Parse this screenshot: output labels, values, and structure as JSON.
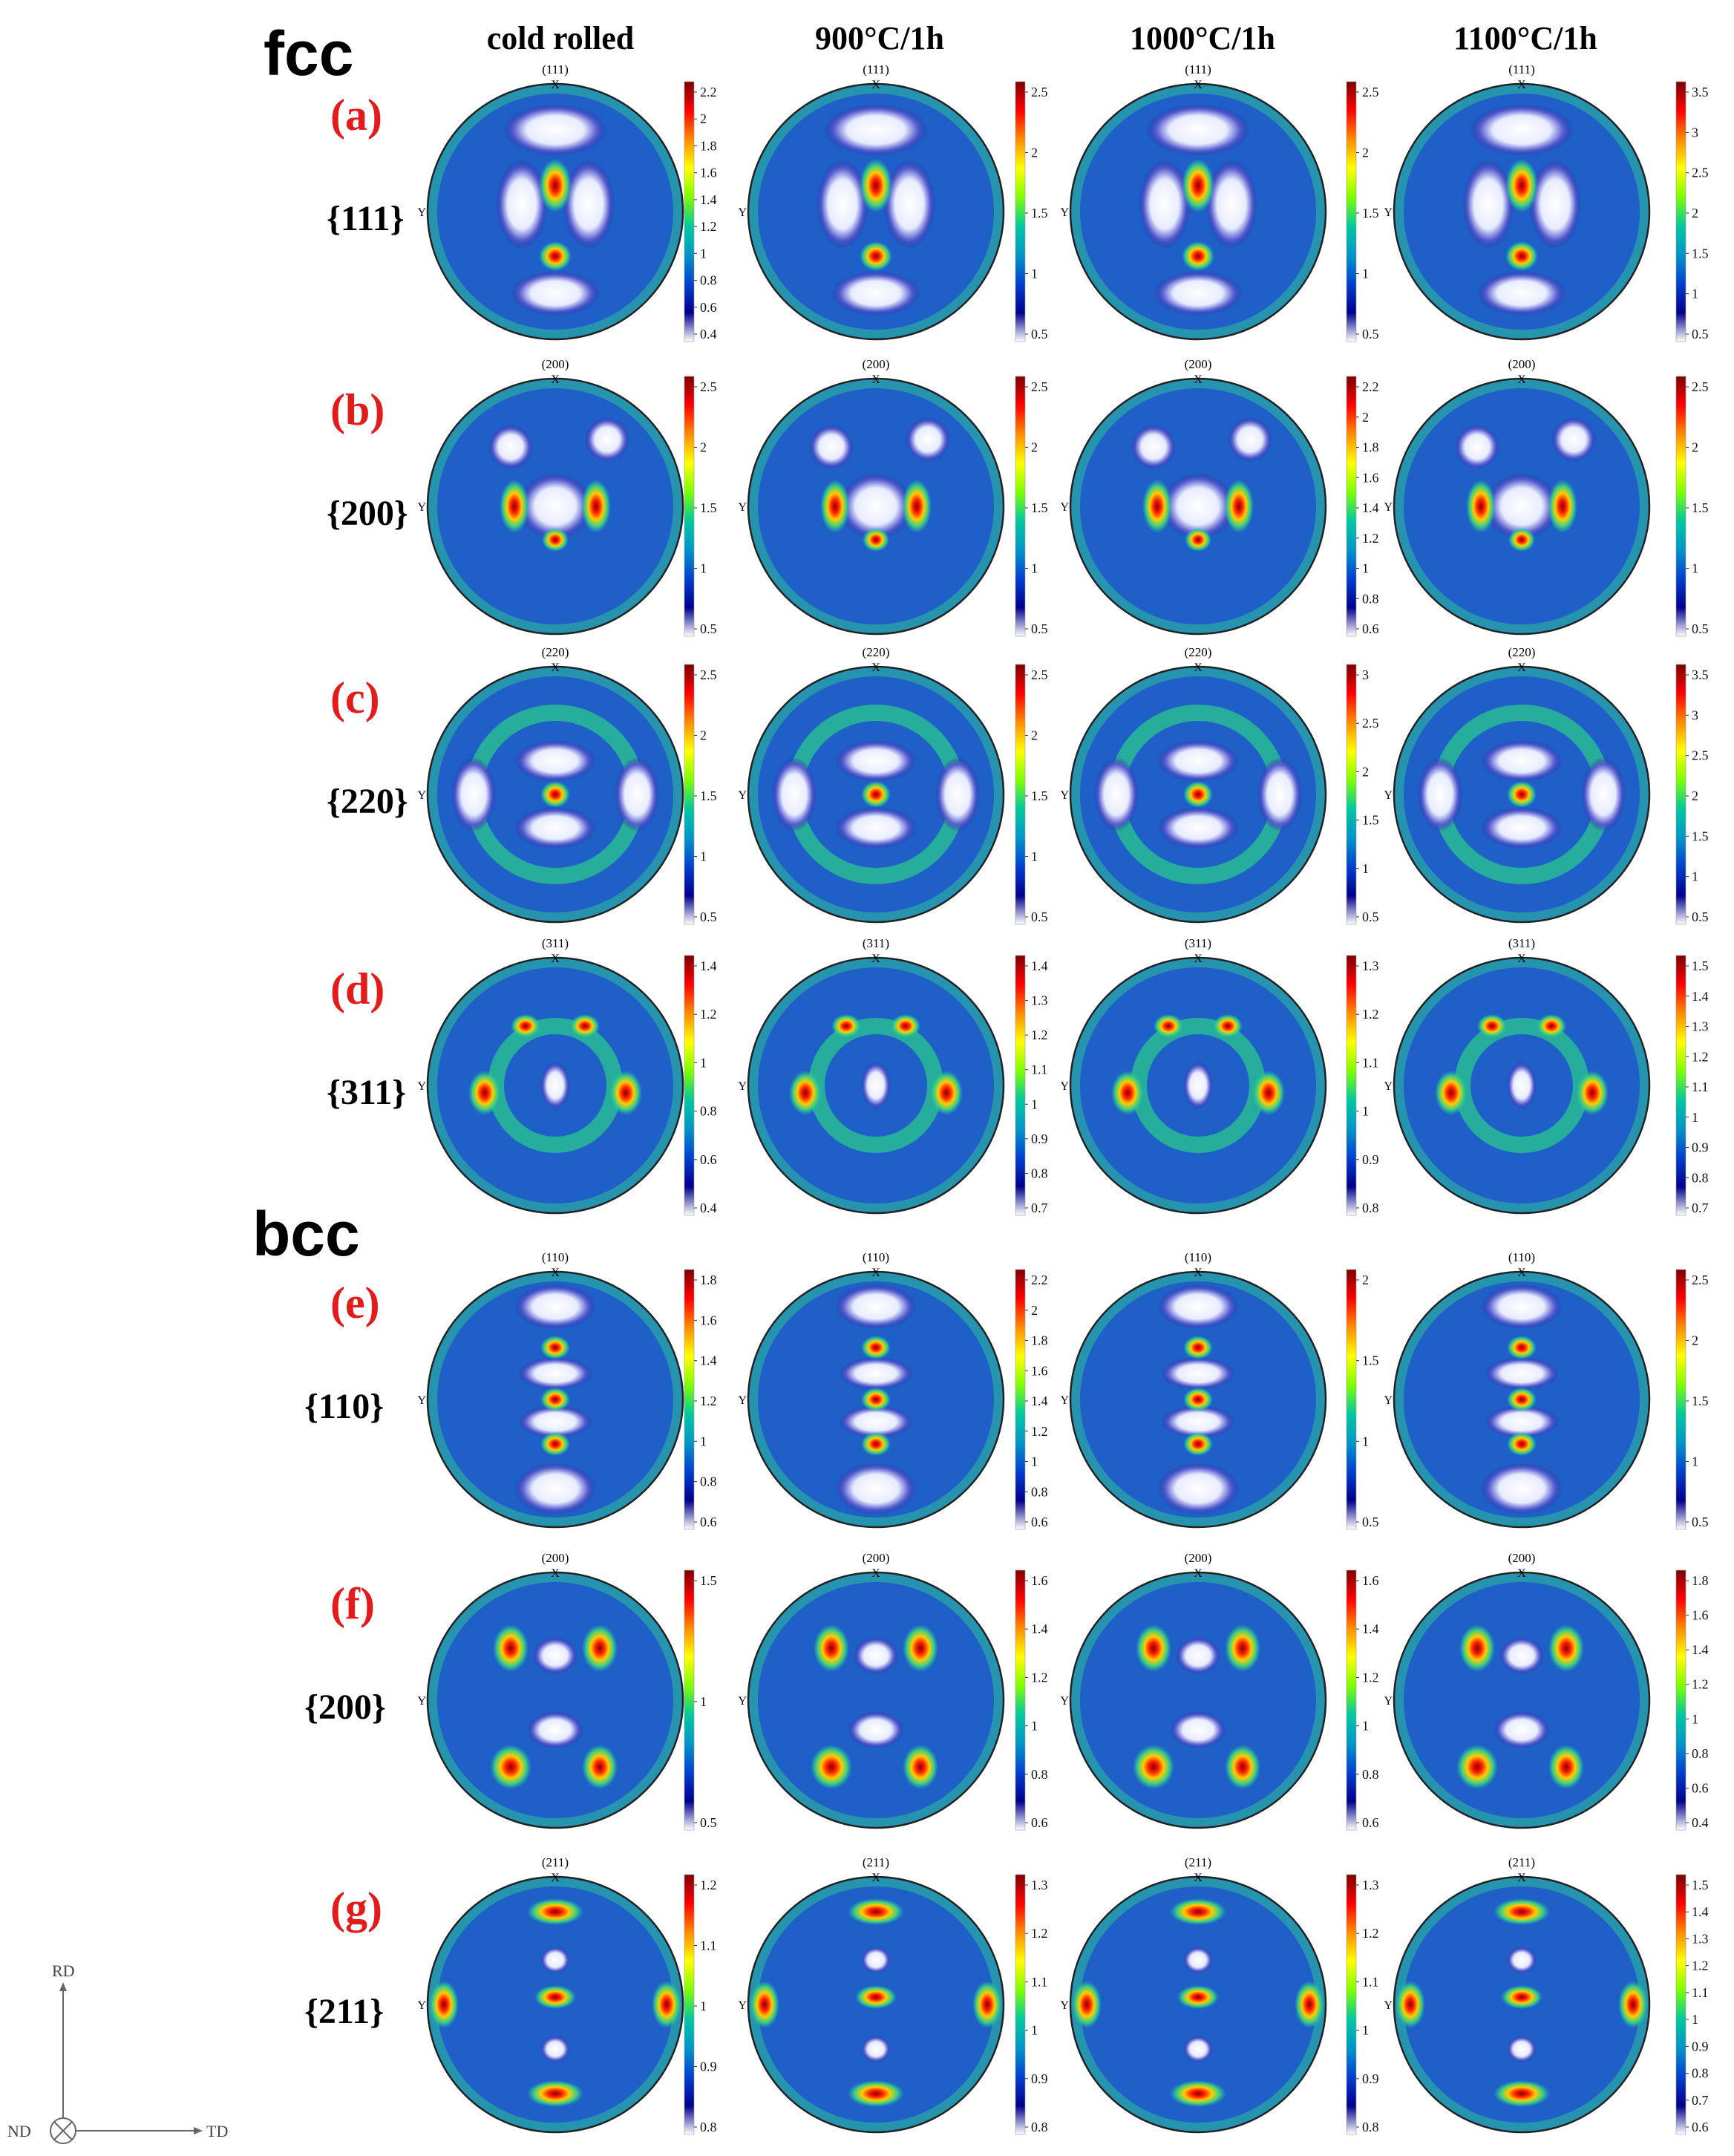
{
  "figure": {
    "phases": [
      "fcc",
      "bcc"
    ],
    "columns": [
      "cold rolled",
      "900°C/1h",
      "1000°C/1h",
      "1100°C/1h"
    ],
    "axis_marks": {
      "top": "X",
      "left": "Y"
    },
    "sample_axes": {
      "up": "RD",
      "right": "TD",
      "origin": "ND"
    },
    "colorbar_colors": [
      "#7f0000",
      "#ff0000",
      "#ff8c00",
      "#ffff00",
      "#7fff00",
      "#00c8a0",
      "#0096c8",
      "#0040d0",
      "#00008b",
      "#ffffff"
    ],
    "rows": [
      {
        "label": "(a)",
        "plane": "{111}",
        "pole": "(111)",
        "phase": "fcc",
        "ticks": [
          [
            "2.2",
            "2",
            "1.8",
            "1.6",
            "1.4",
            "1.2",
            "1",
            "0.8",
            "0.6",
            "0.4"
          ],
          [
            "2.5",
            "2",
            "1.5",
            "1",
            "0.5"
          ],
          [
            "2.5",
            "2",
            "1.5",
            "1",
            "0.5"
          ],
          [
            "3.5",
            "3",
            "2.5",
            "2",
            "1.5",
            "1",
            "0.5"
          ]
        ]
      },
      {
        "label": "(b)",
        "plane": "{200}",
        "pole": "(200)",
        "phase": "fcc",
        "ticks": [
          [
            "2.5",
            "2",
            "1.5",
            "1",
            "0.5"
          ],
          [
            "2.5",
            "2",
            "1.5",
            "1",
            "0.5"
          ],
          [
            "2.2",
            "2",
            "1.8",
            "1.6",
            "1.4",
            "1.2",
            "1",
            "0.8",
            "0.6"
          ],
          [
            "2.5",
            "2",
            "1.5",
            "1",
            "0.5"
          ]
        ]
      },
      {
        "label": "(c)",
        "plane": "{220}",
        "pole": "(220)",
        "phase": "fcc",
        "ticks": [
          [
            "2.5",
            "2",
            "1.5",
            "1",
            "0.5"
          ],
          [
            "2.5",
            "2",
            "1.5",
            "1",
            "0.5"
          ],
          [
            "3",
            "2.5",
            "2",
            "1.5",
            "1",
            "0.5"
          ],
          [
            "3.5",
            "3",
            "2.5",
            "2",
            "1.5",
            "1",
            "0.5"
          ]
        ]
      },
      {
        "label": "(d)",
        "plane": "{311}",
        "pole": "(311)",
        "phase": "fcc",
        "ticks": [
          [
            "1.4",
            "1.2",
            "1",
            "0.8",
            "0.6",
            "0.4"
          ],
          [
            "1.4",
            "1.3",
            "1.2",
            "1.1",
            "1",
            "0.9",
            "0.8",
            "0.7"
          ],
          [
            "1.3",
            "1.2",
            "1.1",
            "1",
            "0.9",
            "0.8"
          ],
          [
            "1.5",
            "1.4",
            "1.3",
            "1.2",
            "1.1",
            "1",
            "0.9",
            "0.8",
            "0.7"
          ]
        ]
      },
      {
        "label": "(e)",
        "plane": "{110}",
        "pole": "(110)",
        "phase": "bcc",
        "ticks": [
          [
            "1.8",
            "1.6",
            "1.4",
            "1.2",
            "1",
            "0.8",
            "0.6"
          ],
          [
            "2.2",
            "2",
            "1.8",
            "1.6",
            "1.4",
            "1.2",
            "1",
            "0.8",
            "0.6"
          ],
          [
            "2",
            "1.5",
            "1",
            "0.5"
          ],
          [
            "2.5",
            "2",
            "1.5",
            "1",
            "0.5"
          ]
        ]
      },
      {
        "label": "(f)",
        "plane": "{200}",
        "pole": "(200)",
        "phase": "bcc",
        "ticks": [
          [
            "1.5",
            "1",
            "0.5"
          ],
          [
            "1.6",
            "1.4",
            "1.2",
            "1",
            "0.8",
            "0.6"
          ],
          [
            "1.6",
            "1.4",
            "1.2",
            "1",
            "0.8",
            "0.6"
          ],
          [
            "1.8",
            "1.6",
            "1.4",
            "1.2",
            "1",
            "0.8",
            "0.6",
            "0.4"
          ]
        ]
      },
      {
        "label": "(g)",
        "plane": "{211}",
        "pole": "(211)",
        "phase": "bcc",
        "ticks": [
          [
            "1.2",
            "1.1",
            "1",
            "0.9",
            "0.8"
          ],
          [
            "1.3",
            "1.2",
            "1.1",
            "1",
            "0.9",
            "0.8"
          ],
          [
            "1.3",
            "1.2",
            "1.1",
            "1",
            "0.9",
            "0.8"
          ],
          [
            "1.5",
            "1.4",
            "1.3",
            "1.2",
            "1.1",
            "1",
            "0.9",
            "0.8",
            "0.7",
            "0.6"
          ]
        ]
      }
    ]
  }
}
